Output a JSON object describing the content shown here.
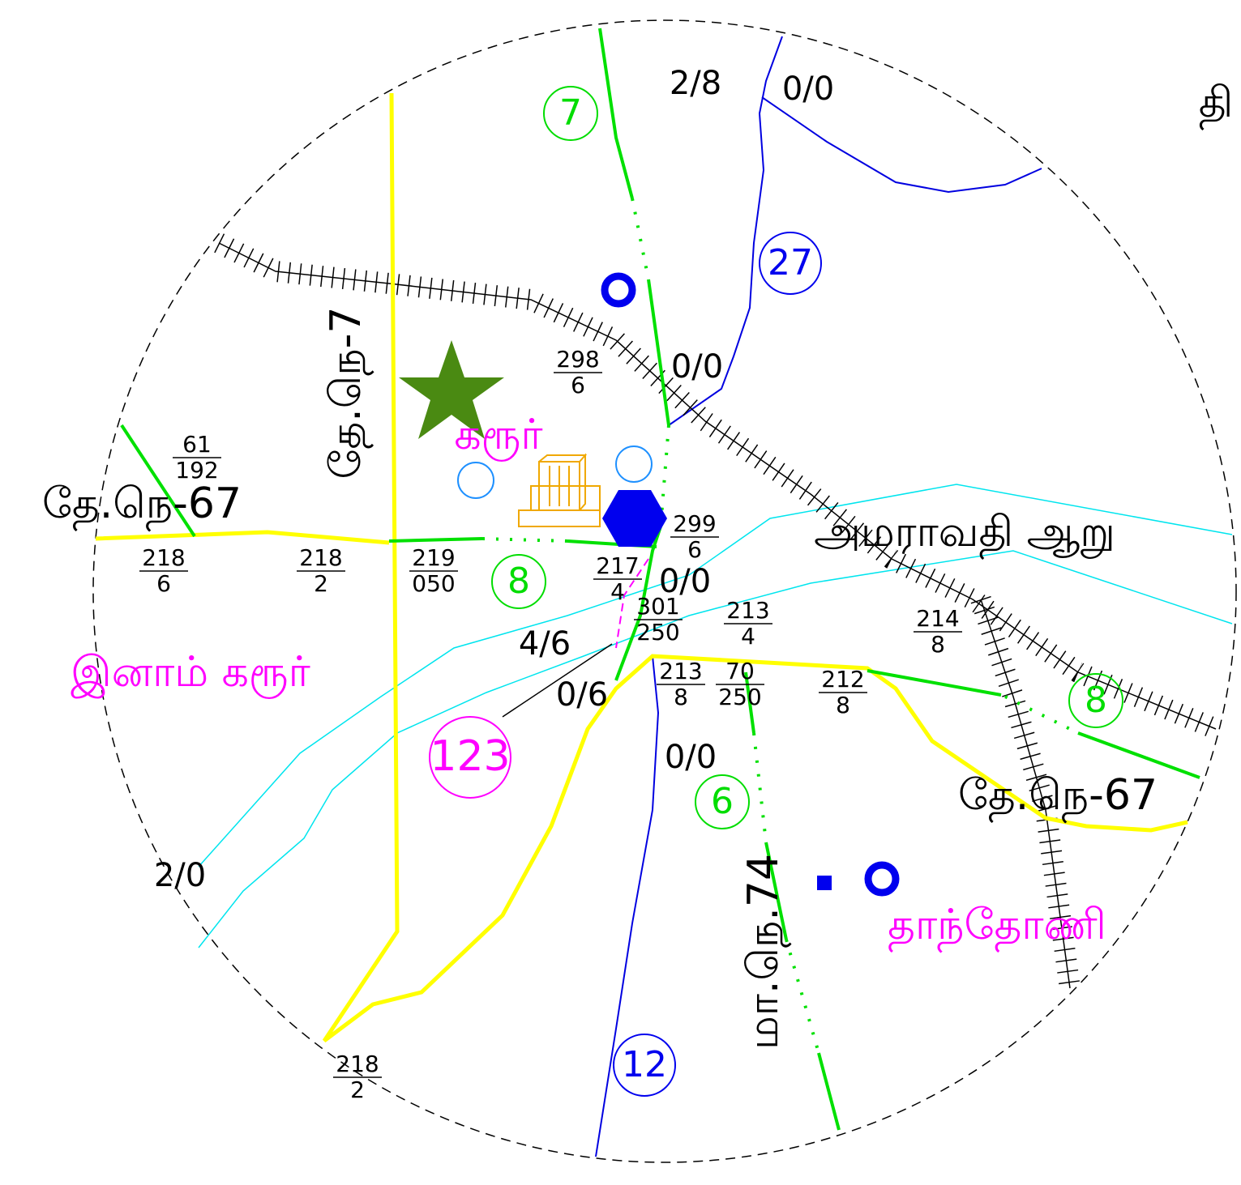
{
  "edge_label": "தி",
  "place_names": [
    "கரூர்",
    "இனாம் கரூர்",
    "தாந்தோணி"
  ],
  "river_label": "அமராவதி ஆறு",
  "road_labels": [
    "தே.நெ-7",
    "தே.நெ-67",
    "தே.நெ-67",
    "மா.நெ.74"
  ],
  "route_numbers": [
    "7",
    "27",
    "8",
    "8",
    "123",
    "6",
    "12"
  ],
  "distance_labels": [
    "2/8",
    "0/0",
    "0/0",
    "0/0",
    "4/6",
    "0/6",
    "0/0",
    "2/0"
  ],
  "fractions": [
    {
      "top": "298",
      "bottom": "6"
    },
    {
      "top": "61",
      "bottom": "192"
    },
    {
      "top": "218",
      "bottom": "6"
    },
    {
      "top": "218",
      "bottom": "2"
    },
    {
      "top": "219",
      "bottom": "050"
    },
    {
      "top": "217",
      "bottom": "4"
    },
    {
      "top": "299",
      "bottom": "6"
    },
    {
      "top": "301",
      "bottom": "250"
    },
    {
      "top": "213",
      "bottom": "4"
    },
    {
      "top": "214",
      "bottom": "8"
    },
    {
      "top": "213",
      "bottom": "8"
    },
    {
      "top": "70",
      "bottom": "250"
    },
    {
      "top": "212",
      "bottom": "8"
    },
    {
      "top": "218",
      "bottom": "2"
    }
  ]
}
